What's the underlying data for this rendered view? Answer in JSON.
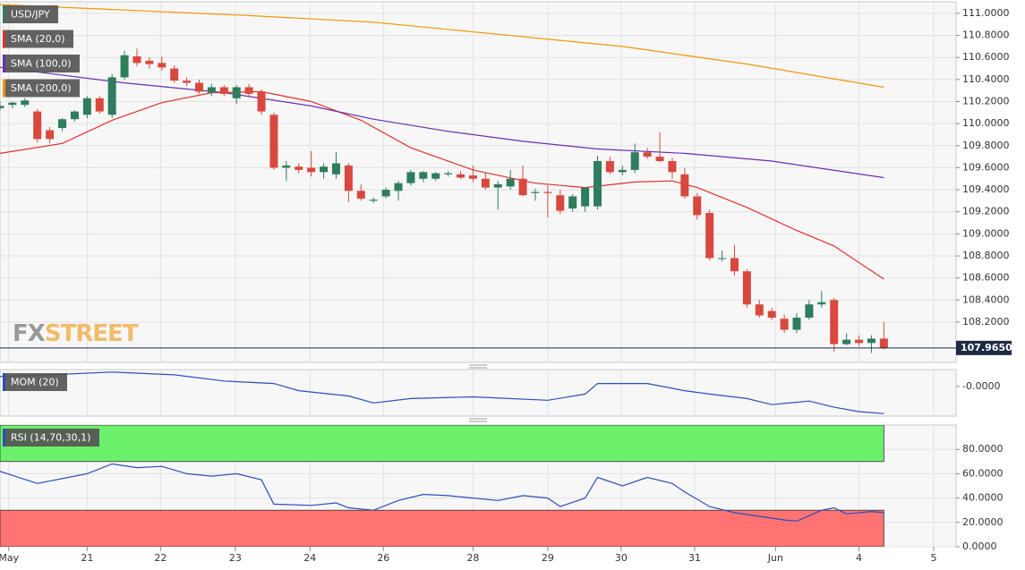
{
  "brand": [
    "FX",
    "STREET"
  ],
  "chart_data": [
    {
      "type": "candlestick",
      "title": "USD/JPY",
      "up_color": "#2e7d5c",
      "down_color": "#d9483e",
      "xlim": [
        0,
        76.8
      ],
      "ylim": [
        107.834,
        111.105
      ],
      "yticks": [
        {
          "value": 111.0,
          "label": "111.0000"
        },
        {
          "value": 110.8,
          "label": "110.8000"
        },
        {
          "value": 110.6,
          "label": "110.6000"
        },
        {
          "value": 110.4,
          "label": "110.4000"
        },
        {
          "value": 110.2,
          "label": "110.2000"
        },
        {
          "value": 110.0,
          "label": "110.0000"
        },
        {
          "value": 109.8,
          "label": "109.8000"
        },
        {
          "value": 109.6,
          "label": "109.6000"
        },
        {
          "value": 109.4,
          "label": "109.4000"
        },
        {
          "value": 109.2,
          "label": "109.2000"
        },
        {
          "value": 109.0,
          "label": "109.0000"
        },
        {
          "value": 108.8,
          "label": "108.8000"
        },
        {
          "value": 108.6,
          "label": "108.6000"
        },
        {
          "value": 108.4,
          "label": "108.4000"
        },
        {
          "value": 108.2,
          "label": "108.2000"
        }
      ],
      "grid": true,
      "last_price": {
        "value": 107.965,
        "label": "107.9650"
      },
      "open": [
        110.14,
        110.17,
        110.17,
        110.11,
        109.94,
        109.96,
        110.04,
        110.08,
        110.23,
        110.08,
        110.42,
        110.61,
        110.57,
        110.55,
        110.5,
        110.39,
        110.37,
        110.28,
        110.33,
        110.23,
        110.33,
        110.29,
        110.08,
        109.6,
        109.61,
        109.6,
        109.56,
        109.54,
        109.62,
        109.39,
        109.3,
        109.34,
        109.39,
        109.46,
        109.5,
        109.5,
        109.54,
        109.54,
        109.53,
        109.5,
        109.42,
        109.43,
        109.5,
        109.37,
        109.38,
        109.35,
        109.23,
        109.25,
        109.25,
        109.66,
        109.56,
        109.58,
        109.74,
        109.7,
        109.66,
        109.54,
        109.34,
        109.19,
        108.78,
        108.78,
        108.66,
        108.36,
        108.3,
        108.23,
        108.13,
        108.24,
        108.36,
        108.4,
        108.0,
        108.04,
        108.01,
        108.05
      ],
      "high": [
        110.2,
        110.2,
        110.23,
        110.13,
        109.97,
        110.05,
        110.12,
        110.25,
        110.25,
        110.45,
        110.66,
        110.68,
        110.6,
        110.61,
        110.53,
        110.42,
        110.4,
        110.36,
        110.35,
        110.35,
        110.36,
        110.31,
        110.1,
        109.66,
        109.64,
        109.75,
        109.64,
        109.74,
        109.64,
        109.45,
        109.33,
        109.42,
        109.48,
        109.58,
        109.57,
        109.56,
        109.57,
        109.57,
        109.62,
        109.56,
        109.48,
        109.58,
        109.62,
        109.41,
        109.44,
        109.4,
        109.36,
        109.42,
        109.71,
        109.7,
        109.62,
        109.82,
        109.78,
        109.92,
        109.69,
        109.6,
        109.37,
        109.22,
        108.85,
        108.9,
        108.68,
        108.4,
        108.33,
        108.27,
        108.28,
        108.4,
        108.48,
        108.42,
        108.1,
        108.08,
        108.08,
        108.2
      ],
      "low": [
        110.12,
        110.14,
        110.15,
        109.83,
        109.82,
        109.93,
        110.02,
        110.05,
        110.09,
        110.05,
        110.4,
        110.52,
        110.5,
        110.48,
        110.37,
        110.34,
        110.27,
        110.25,
        110.25,
        110.18,
        110.25,
        110.08,
        109.58,
        109.48,
        109.55,
        109.52,
        109.5,
        109.5,
        109.29,
        109.3,
        109.28,
        109.32,
        109.3,
        109.44,
        109.47,
        109.48,
        109.52,
        109.5,
        109.47,
        109.4,
        109.22,
        109.4,
        109.34,
        109.3,
        109.15,
        109.18,
        109.2,
        109.2,
        109.22,
        109.54,
        109.53,
        109.55,
        109.68,
        109.65,
        109.5,
        109.32,
        109.13,
        108.76,
        108.75,
        108.62,
        108.33,
        108.24,
        108.22,
        108.1,
        108.1,
        108.22,
        108.33,
        107.93,
        107.99,
        107.98,
        107.92,
        107.95
      ],
      "close": [
        110.16,
        110.19,
        110.21,
        109.86,
        109.86,
        110.04,
        110.11,
        110.23,
        110.11,
        110.42,
        110.62,
        110.55,
        110.54,
        110.51,
        110.39,
        110.37,
        110.29,
        110.33,
        110.27,
        110.33,
        110.27,
        110.11,
        109.6,
        109.62,
        109.58,
        109.56,
        109.61,
        109.64,
        109.39,
        109.32,
        109.31,
        109.4,
        109.46,
        109.56,
        109.56,
        109.55,
        109.55,
        109.51,
        109.5,
        109.42,
        109.45,
        109.5,
        109.35,
        109.38,
        109.37,
        109.21,
        109.34,
        109.42,
        109.66,
        109.56,
        109.58,
        109.74,
        109.7,
        109.66,
        109.56,
        109.34,
        109.17,
        108.78,
        108.78,
        108.66,
        108.36,
        108.26,
        108.24,
        108.13,
        108.24,
        108.36,
        108.38,
        108.0,
        108.04,
        108.01,
        108.05,
        107.965
      ],
      "series": [
        {
          "name": "SMA (20,0)",
          "color": "#e0312b",
          "x": [
            0,
            5,
            9,
            13,
            17,
            21,
            25,
            29,
            33,
            38,
            43,
            47,
            51,
            54,
            56,
            60,
            64,
            67,
            71
          ],
          "values": [
            109.73,
            109.82,
            110.03,
            110.19,
            110.28,
            110.29,
            110.2,
            110.03,
            109.78,
            109.58,
            109.46,
            109.42,
            109.47,
            109.48,
            109.42,
            109.24,
            109.03,
            108.89,
            108.59
          ]
        },
        {
          "name": "SMA (100,0)",
          "color": "#6a2fb0",
          "x": [
            0,
            10,
            18,
            25,
            30,
            36,
            42,
            48,
            55,
            62,
            71
          ],
          "values": [
            110.51,
            110.37,
            110.28,
            110.16,
            110.04,
            109.93,
            109.84,
            109.77,
            109.73,
            109.66,
            109.51
          ]
        },
        {
          "name": "SMA (200,0)",
          "color": "#f0960a",
          "x": [
            0,
            10,
            20,
            30,
            40,
            50,
            60,
            71
          ],
          "values": [
            111.08,
            111.03,
            110.98,
            110.92,
            110.81,
            110.7,
            110.54,
            110.33
          ]
        }
      ]
    },
    {
      "type": "line",
      "title": "MOM (20)",
      "xlim": [
        0,
        76.8
      ],
      "ylim": [
        -1.4,
        0.8
      ],
      "yticks": [
        {
          "value": 0,
          "label": "-0.0000"
        }
      ],
      "series": [
        {
          "color": "#2b4fb8",
          "x": [
            0,
            4,
            9,
            14,
            18,
            22,
            24,
            28,
            30,
            33,
            38,
            44,
            47,
            48,
            52,
            55,
            57,
            60,
            62,
            65,
            67,
            69,
            71
          ],
          "values": [
            0.47,
            0.55,
            0.68,
            0.55,
            0.26,
            0.14,
            -0.2,
            -0.45,
            -0.78,
            -0.57,
            -0.49,
            -0.65,
            -0.36,
            0.14,
            0.14,
            -0.2,
            -0.36,
            -0.57,
            -0.86,
            -0.69,
            -0.98,
            -1.19,
            -1.28
          ]
        }
      ]
    },
    {
      "type": "line",
      "title": "RSI (14,70,30,1)",
      "xlim": [
        0,
        76.8
      ],
      "ylim": [
        0,
        100
      ],
      "yticks": [
        {
          "value": 80,
          "label": "80.0000"
        },
        {
          "value": 60,
          "label": "60.0000"
        },
        {
          "value": 40,
          "label": "40.0000"
        },
        {
          "value": 20,
          "label": "20.0000"
        },
        {
          "value": 0,
          "label": "0.0000"
        }
      ],
      "grid": true,
      "bands": [
        {
          "from": 70,
          "to": 100,
          "color": "#6cf06c"
        },
        {
          "from": 0,
          "to": 30,
          "color": "#ff7373"
        }
      ],
      "xticks": [
        {
          "value": 0.7,
          "label": "May"
        },
        {
          "value": 7.0,
          "label": "21"
        },
        {
          "value": 12.9,
          "label": "22"
        },
        {
          "value": 18.9,
          "label": "23"
        },
        {
          "value": 24.9,
          "label": "24"
        },
        {
          "value": 30.8,
          "label": "26"
        },
        {
          "value": 38.0,
          "label": "28"
        },
        {
          "value": 44.0,
          "label": "29"
        },
        {
          "value": 49.9,
          "label": "30"
        },
        {
          "value": 55.8,
          "label": "31"
        },
        {
          "value": 62.3,
          "label": "Jun"
        },
        {
          "value": 69.0,
          "label": "4"
        },
        {
          "value": 75.0,
          "label": "5"
        }
      ],
      "series": [
        {
          "color": "#2b4fb8",
          "x": [
            0,
            3,
            7,
            9,
            11,
            13,
            15,
            17,
            19,
            21,
            22,
            25,
            27,
            28,
            30,
            32,
            34,
            36,
            38,
            40,
            42,
            44,
            45,
            47,
            48,
            50,
            52,
            54,
            55,
            57,
            59,
            61,
            63,
            64,
            66,
            67,
            68,
            70,
            71
          ],
          "values": [
            62,
            52,
            60,
            68,
            65,
            66,
            60,
            58,
            60,
            55,
            35,
            34,
            36,
            32,
            30,
            38,
            43,
            42,
            40,
            38,
            42,
            40,
            33,
            40,
            57,
            50,
            57,
            52,
            45,
            33,
            28,
            25,
            22,
            21,
            30,
            32,
            27,
            29,
            28
          ]
        }
      ]
    }
  ]
}
